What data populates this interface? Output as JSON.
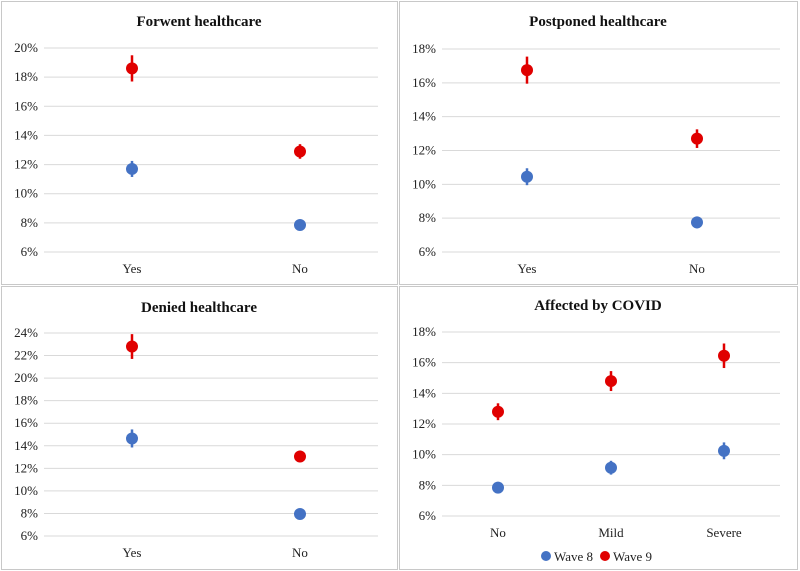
{
  "colors": {
    "wave8": "#4472c4",
    "wave9": "#e00000"
  },
  "legend": {
    "wave8_label": "Wave 8",
    "wave9_label": "Wave 9"
  },
  "chart_data": [
    {
      "type": "scatter",
      "title": "Forwent healthcare",
      "categories": [
        "Yes",
        "No"
      ],
      "yticks": [
        "6%",
        "8%",
        "10%",
        "12%",
        "14%",
        "16%",
        "18%",
        "20%"
      ],
      "ylim": [
        6,
        20
      ],
      "series": [
        {
          "name": "Wave 8",
          "values": [
            11.7,
            7.85
          ],
          "err": [
            0.55,
            0.2
          ]
        },
        {
          "name": "Wave 9",
          "values": [
            18.6,
            12.9
          ],
          "err": [
            0.9,
            0.5
          ]
        }
      ]
    },
    {
      "type": "scatter",
      "title": "Postponed healthcare",
      "categories": [
        "Yes",
        "No"
      ],
      "yticks": [
        "6%",
        "8%",
        "10%",
        "12%",
        "14%",
        "16%",
        "18%"
      ],
      "ylim": [
        6,
        18
      ],
      "series": [
        {
          "name": "Wave 8",
          "values": [
            10.45,
            7.75
          ],
          "err": [
            0.5,
            0.35
          ]
        },
        {
          "name": "Wave 9",
          "values": [
            16.75,
            12.7
          ],
          "err": [
            0.8,
            0.55
          ]
        }
      ]
    },
    {
      "type": "scatter",
      "title": "Denied healthcare",
      "categories": [
        "Yes",
        "No"
      ],
      "yticks": [
        "6%",
        "8%",
        "10%",
        "12%",
        "14%",
        "16%",
        "18%",
        "20%",
        "22%",
        "24%"
      ],
      "ylim": [
        6,
        24
      ],
      "series": [
        {
          "name": "Wave 8",
          "values": [
            14.65,
            7.95
          ],
          "err": [
            0.8,
            0.2
          ]
        },
        {
          "name": "Wave 9",
          "values": [
            22.8,
            13.05
          ],
          "err": [
            1.1,
            0.5
          ]
        }
      ]
    },
    {
      "type": "scatter",
      "title": "Affected by COVID",
      "categories": [
        "No",
        "Mild",
        "Severe"
      ],
      "yticks": [
        "6%",
        "8%",
        "10%",
        "12%",
        "14%",
        "16%",
        "18%"
      ],
      "ylim": [
        6,
        18
      ],
      "series": [
        {
          "name": "Wave 8",
          "values": [
            7.85,
            9.15,
            10.25
          ],
          "err": [
            0.25,
            0.45,
            0.55
          ]
        },
        {
          "name": "Wave 9",
          "values": [
            12.8,
            14.8,
            16.45
          ],
          "err": [
            0.55,
            0.65,
            0.8
          ]
        }
      ]
    }
  ]
}
